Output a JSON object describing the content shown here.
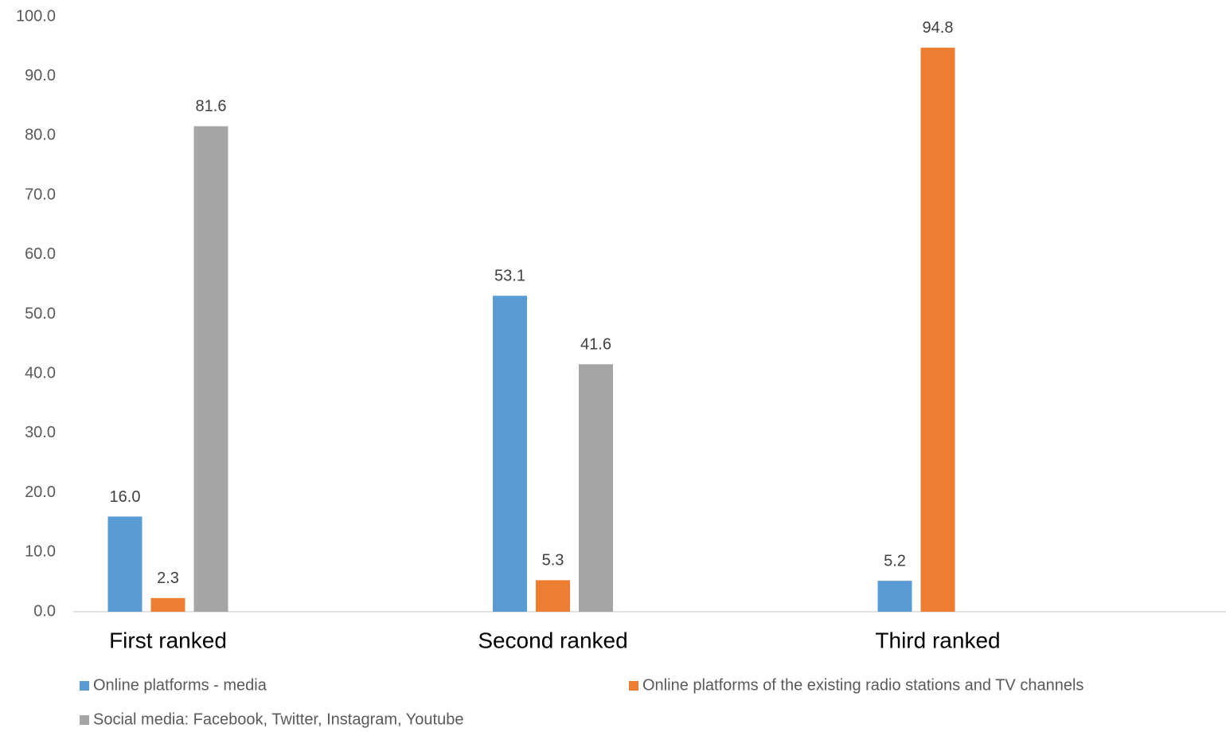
{
  "chart_data": {
    "type": "bar",
    "categories": [
      "First ranked",
      "Second ranked",
      "Third ranked"
    ],
    "series": [
      {
        "name": "Online platforms - media",
        "color": "#5b9bd5",
        "values": [
          16.0,
          53.1,
          5.2
        ],
        "value_labels": [
          "16.0",
          "53.1",
          "5.2"
        ]
      },
      {
        "name": "Online platforms of the existing radio stations and TV channels",
        "color": "#ed7d31",
        "values": [
          2.3,
          5.3,
          94.8
        ],
        "value_labels": [
          "2.3",
          "5.3",
          "94.8"
        ]
      },
      {
        "name": "Social media: Facebook, Twitter, Instagram, Youtube",
        "color": "#a5a5a5",
        "values": [
          81.6,
          41.6,
          null
        ],
        "value_labels": [
          "81.6",
          "41.6",
          null
        ]
      }
    ],
    "ylim": [
      0,
      100
    ],
    "yticks": [
      {
        "value": 0,
        "label": "0.0"
      },
      {
        "value": 10,
        "label": "10.0"
      },
      {
        "value": 20,
        "label": "20.0"
      },
      {
        "value": 30,
        "label": "30.0"
      },
      {
        "value": 40,
        "label": "40.0"
      },
      {
        "value": 50,
        "label": "50.0"
      },
      {
        "value": 60,
        "label": "60.0"
      },
      {
        "value": 70,
        "label": "70.0"
      },
      {
        "value": 80,
        "label": "80.0"
      },
      {
        "value": 90,
        "label": "90.0"
      },
      {
        "value": 100,
        "label": "100.0"
      }
    ],
    "grid": false
  }
}
